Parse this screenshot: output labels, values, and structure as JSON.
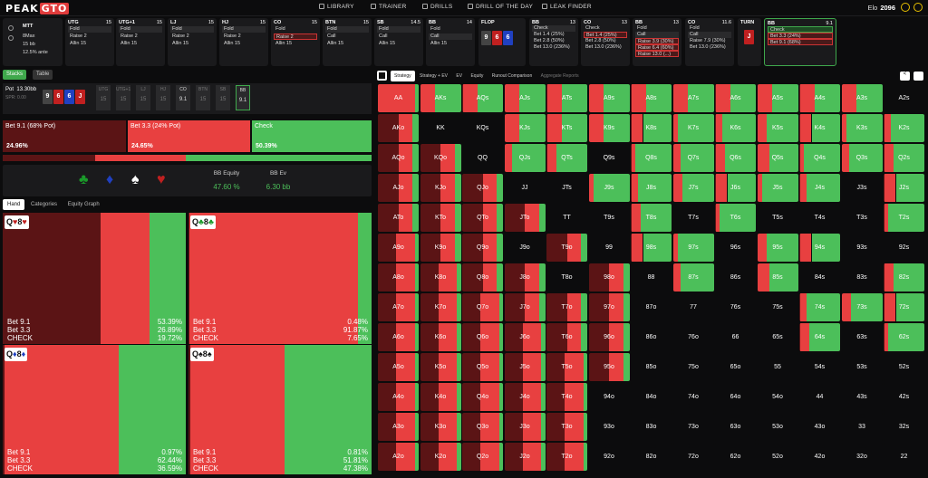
{
  "app": {
    "logo_a": "PEAK",
    "logo_b": "GTO",
    "elo_label": "Elo",
    "elo_value": "2096"
  },
  "nav": [
    "LIBRARY",
    "TRAINER",
    "DRILLS",
    "DRILL OF THE DAY",
    "LEAK FINDER"
  ],
  "game": {
    "type": "MTT",
    "max": "8Max",
    "stack": "15 bb",
    "ante": "12.5% ante"
  },
  "positions": [
    {
      "pos": "UTG",
      "stack": "15",
      "opts": [
        "Fold",
        "Raise 2",
        "Allin 15"
      ],
      "sel": 0,
      "selstyle": "sel"
    },
    {
      "pos": "UTG+1",
      "stack": "15",
      "opts": [
        "Fold",
        "Raise 2",
        "Allin 15"
      ],
      "sel": 0,
      "selstyle": "sel"
    },
    {
      "pos": "LJ",
      "stack": "15",
      "opts": [
        "Fold",
        "Raise 2",
        "Allin 15"
      ],
      "sel": 0,
      "selstyle": "sel"
    },
    {
      "pos": "HJ",
      "stack": "15",
      "opts": [
        "Fold",
        "Raise 2",
        "Allin 15"
      ],
      "sel": 0,
      "selstyle": "sel"
    },
    {
      "pos": "CO",
      "stack": "15",
      "opts": [
        "Fold",
        "Raise 2",
        "Allin 15"
      ],
      "sel": 1,
      "selstyle": "selr"
    },
    {
      "pos": "BTN",
      "stack": "15",
      "opts": [
        "Fold",
        "Call",
        "Allin 15"
      ],
      "sel": 0,
      "selstyle": "sel"
    },
    {
      "pos": "SB",
      "stack": "14.5",
      "opts": [
        "Fold",
        "Call",
        "Allin 15"
      ],
      "sel": 0,
      "selstyle": "sel"
    },
    {
      "pos": "BB",
      "stack": "14",
      "opts": [
        "Fold",
        "Call",
        "Allin 15"
      ],
      "sel": 1,
      "selstyle": "sel"
    }
  ],
  "flop": {
    "label": "FLOP",
    "cards": [
      {
        "r": "9",
        "c": "#444"
      },
      {
        "r": "6",
        "c": "#c02020"
      },
      {
        "r": "6",
        "c": "#2040c0"
      }
    ]
  },
  "bb_flop": {
    "pos": "BB",
    "stack": "13",
    "opts": [
      "Check",
      "Bet 1.4 (25%)",
      "Bet 2.8 (50%)",
      "Bet 13.0 (236%)"
    ],
    "sel": 0
  },
  "co_flop": {
    "pos": "CO",
    "stack": "13",
    "opts": [
      "Check",
      "Bet 1.4 (25%)",
      "Bet 2.8 (50%)",
      "Bet 13.0 (236%)"
    ],
    "sel": 1
  },
  "bb_flop2": {
    "pos": "BB",
    "stack": "13",
    "opts": [
      "Fold",
      "Call",
      "Raise 3.9 (30%)",
      "Raise 6.4 (60%)",
      "Raise 13.0 (...)"
    ],
    "sel": 1
  },
  "co_flop2": {
    "pos": "CO",
    "stack": "11.6",
    "opts": [
      "Fold",
      "Call",
      "Raise 7.9 (30%)",
      "Bet 13.0 (236%)"
    ],
    "sel": 1
  },
  "turn": {
    "label": "TURN",
    "card": "J"
  },
  "bb_turn": {
    "pos": "BB",
    "stack": "9.1",
    "opts": [
      "Check",
      "Bet 3.3 (24%)",
      "Bet 9.1 (68%)"
    ]
  },
  "left_tabs": {
    "stacks": "Stacks",
    "table": "Table"
  },
  "pot": {
    "label": "Pot",
    "value": "13.30bb",
    "spr": "SPR: 0.00",
    "board": [
      {
        "r": "9",
        "c": "#444"
      },
      {
        "r": "6",
        "c": "#c02020"
      },
      {
        "r": "6",
        "c": "#2040c0"
      },
      {
        "r": "J",
        "c": "#c02020"
      }
    ],
    "seats": [
      {
        "n": "UTG",
        "s": "15"
      },
      {
        "n": "UTG+1",
        "s": "15"
      },
      {
        "n": "LJ",
        "s": "15"
      },
      {
        "n": "HJ",
        "s": "15"
      },
      {
        "n": "CO",
        "s": "9.1"
      },
      {
        "n": "BTN",
        "s": "15"
      },
      {
        "n": "SB",
        "s": "15"
      },
      {
        "n": "BB",
        "s": "9.1"
      }
    ]
  },
  "actions": [
    {
      "label": "Bet 9.1 (68% Pot)",
      "pct": "24.96%",
      "color": "#5b1415"
    },
    {
      "label": "Bet 3.3 (24% Pot)",
      "pct": "24.65%",
      "color": "#e84040"
    },
    {
      "label": "Check",
      "pct": "50.39%",
      "color": "#4cbf5a"
    }
  ],
  "equity": {
    "eq_label": "BB Equity",
    "eq_value": "47.60 %",
    "ev_label": "BB Ev",
    "ev_value": "6.30 bb"
  },
  "subtabs": [
    "Hand",
    "Categories",
    "Equity Graph"
  ],
  "combos": [
    {
      "hand": "Q♥8♥",
      "s1": "♥",
      "s2": "♥",
      "col": "#c02020",
      "bet91": "53.39%",
      "bet33": "26.89%",
      "check": "19.72%",
      "b91": 0.534,
      "b33": 0.269
    },
    {
      "hand": "Q♣8♣",
      "s1": "♣",
      "s2": "♣",
      "col": "#1a9a2a",
      "bet91": "0.48%",
      "bet33": "91.87%",
      "check": "7.65%",
      "b91": 0.005,
      "b33": 0.919
    },
    {
      "hand": "Q♦8♦",
      "s1": "♦",
      "s2": "♦",
      "col": "#2040c0",
      "bet91": "0.97%",
      "bet33": "62.44%",
      "check": "36.59%",
      "b91": 0.01,
      "b33": 0.624
    },
    {
      "hand": "Q♠8♠",
      "s1": "♠",
      "s2": "♠",
      "col": "#111",
      "bet91": "0.81%",
      "bet33": "51.81%",
      "check": "47.38%",
      "b91": 0.008,
      "b33": 0.518
    }
  ],
  "combo_labels": {
    "bet91": "Bet 9.1",
    "bet33": "Bet 3.3",
    "check": "CHECK"
  },
  "right_tabs": [
    "Strategy",
    "Strategy + EV",
    "EV",
    "Equity",
    "Runout Comparison",
    "Aggregate Reports"
  ],
  "colors": {
    "bet91": "#5b1415",
    "bet33": "#e84040",
    "check": "#4cbf5a"
  },
  "ranks": [
    "A",
    "K",
    "Q",
    "J",
    "T",
    "9",
    "8",
    "7",
    "6",
    "5",
    "4",
    "3",
    "2"
  ]
}
